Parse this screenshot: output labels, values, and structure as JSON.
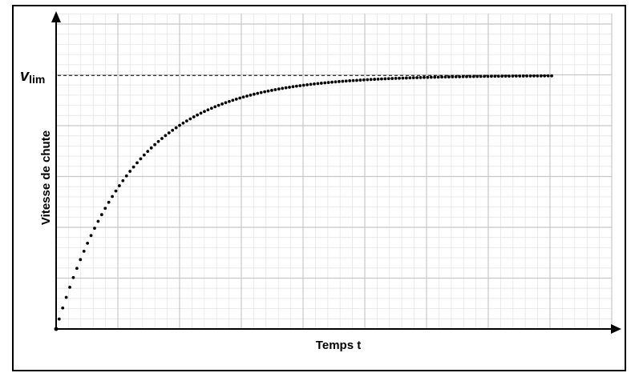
{
  "chart_data": {
    "type": "scatter",
    "title": "",
    "xlabel": "Temps t",
    "ylabel": "Vitesse de chute",
    "asymptote": {
      "v": "v",
      "sub": "lim"
    },
    "grid": true,
    "x_major_lines": 8,
    "y_major_lines": 5,
    "minor_subdivisions": 5,
    "series": [
      {
        "v_lim": 1.0,
        "tau": 1.0,
        "t_start": 0.04,
        "t_end": 6.52,
        "n_points": 140,
        "equation": "v = v_lim * (1 - exp(-t / tau))"
      }
    ],
    "xlim": [
      0,
      7.3
    ],
    "ylim": [
      0,
      1.244
    ]
  },
  "colors": {
    "grid_major": "#c8c8c8",
    "grid_minor": "#e6e6e6",
    "axis": "#000000",
    "points": "#000000"
  }
}
